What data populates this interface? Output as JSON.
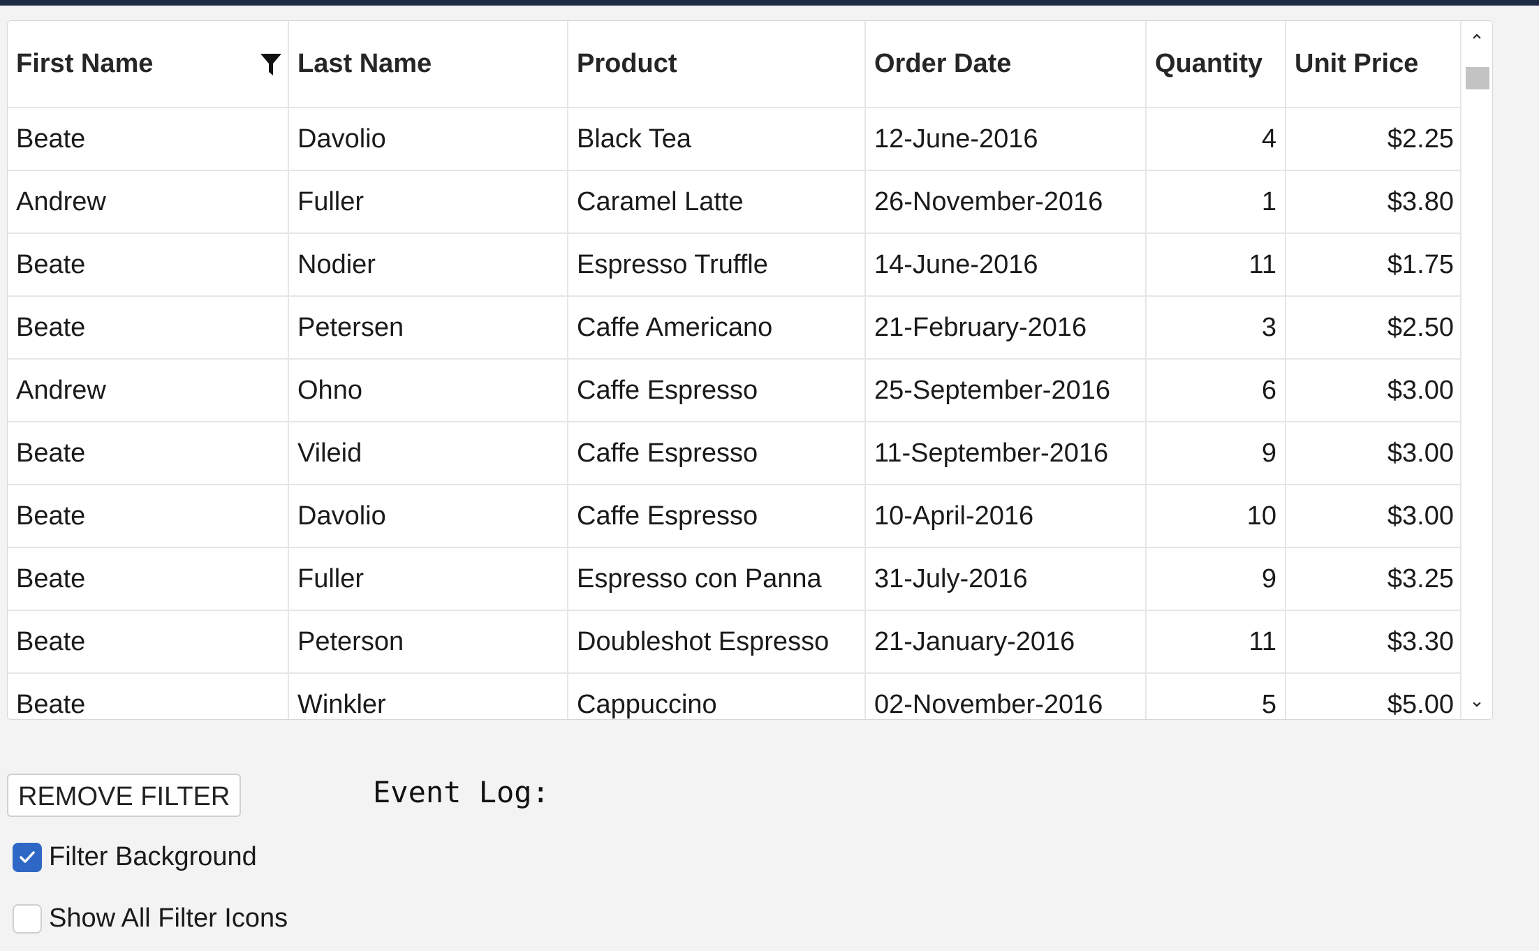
{
  "grid": {
    "columns": [
      {
        "label": "First Name",
        "has_filter": true
      },
      {
        "label": "Last Name"
      },
      {
        "label": "Product"
      },
      {
        "label": "Order Date"
      },
      {
        "label": "Quantity"
      },
      {
        "label": "Unit Price"
      }
    ],
    "rows": [
      [
        "Beate",
        "Davolio",
        "Black Tea",
        "12-June-2016",
        "4",
        "$2.25"
      ],
      [
        "Andrew",
        "Fuller",
        "Caramel Latte",
        "26-November-2016",
        "1",
        "$3.80"
      ],
      [
        "Beate",
        "Nodier",
        "Espresso Truffle",
        "14-June-2016",
        "11",
        "$1.75"
      ],
      [
        "Beate",
        "Petersen",
        "Caffe Americano",
        "21-February-2016",
        "3",
        "$2.50"
      ],
      [
        "Andrew",
        "Ohno",
        "Caffe Espresso",
        "25-September-2016",
        "6",
        "$3.00"
      ],
      [
        "Beate",
        "Vileid",
        "Caffe Espresso",
        "11-September-2016",
        "9",
        "$3.00"
      ],
      [
        "Beate",
        "Davolio",
        "Caffe Espresso",
        "10-April-2016",
        "10",
        "$3.00"
      ],
      [
        "Beate",
        "Fuller",
        "Espresso con Panna",
        "31-July-2016",
        "9",
        "$3.25"
      ],
      [
        "Beate",
        "Peterson",
        "Doubleshot Espresso",
        "21-January-2016",
        "11",
        "$3.30"
      ],
      [
        "Beate",
        "Winkler",
        "Cappuccino",
        "02-November-2016",
        "5",
        "$5.00"
      ]
    ]
  },
  "controls": {
    "remove_filter_label": "REMOVE FILTER",
    "event_log_label": "Event Log:",
    "filter_background": {
      "label": "Filter Background",
      "checked": true
    },
    "show_all_filter_icons": {
      "label": "Show All Filter Icons",
      "checked": false
    }
  },
  "colors": {
    "accent": "#2f67c6",
    "topbar": "#1f2b45"
  },
  "icons": {
    "filter": "funnel-icon",
    "scroll_up": "chevron-up-icon",
    "scroll_down": "chevron-down-icon",
    "check": "checkmark-icon"
  }
}
